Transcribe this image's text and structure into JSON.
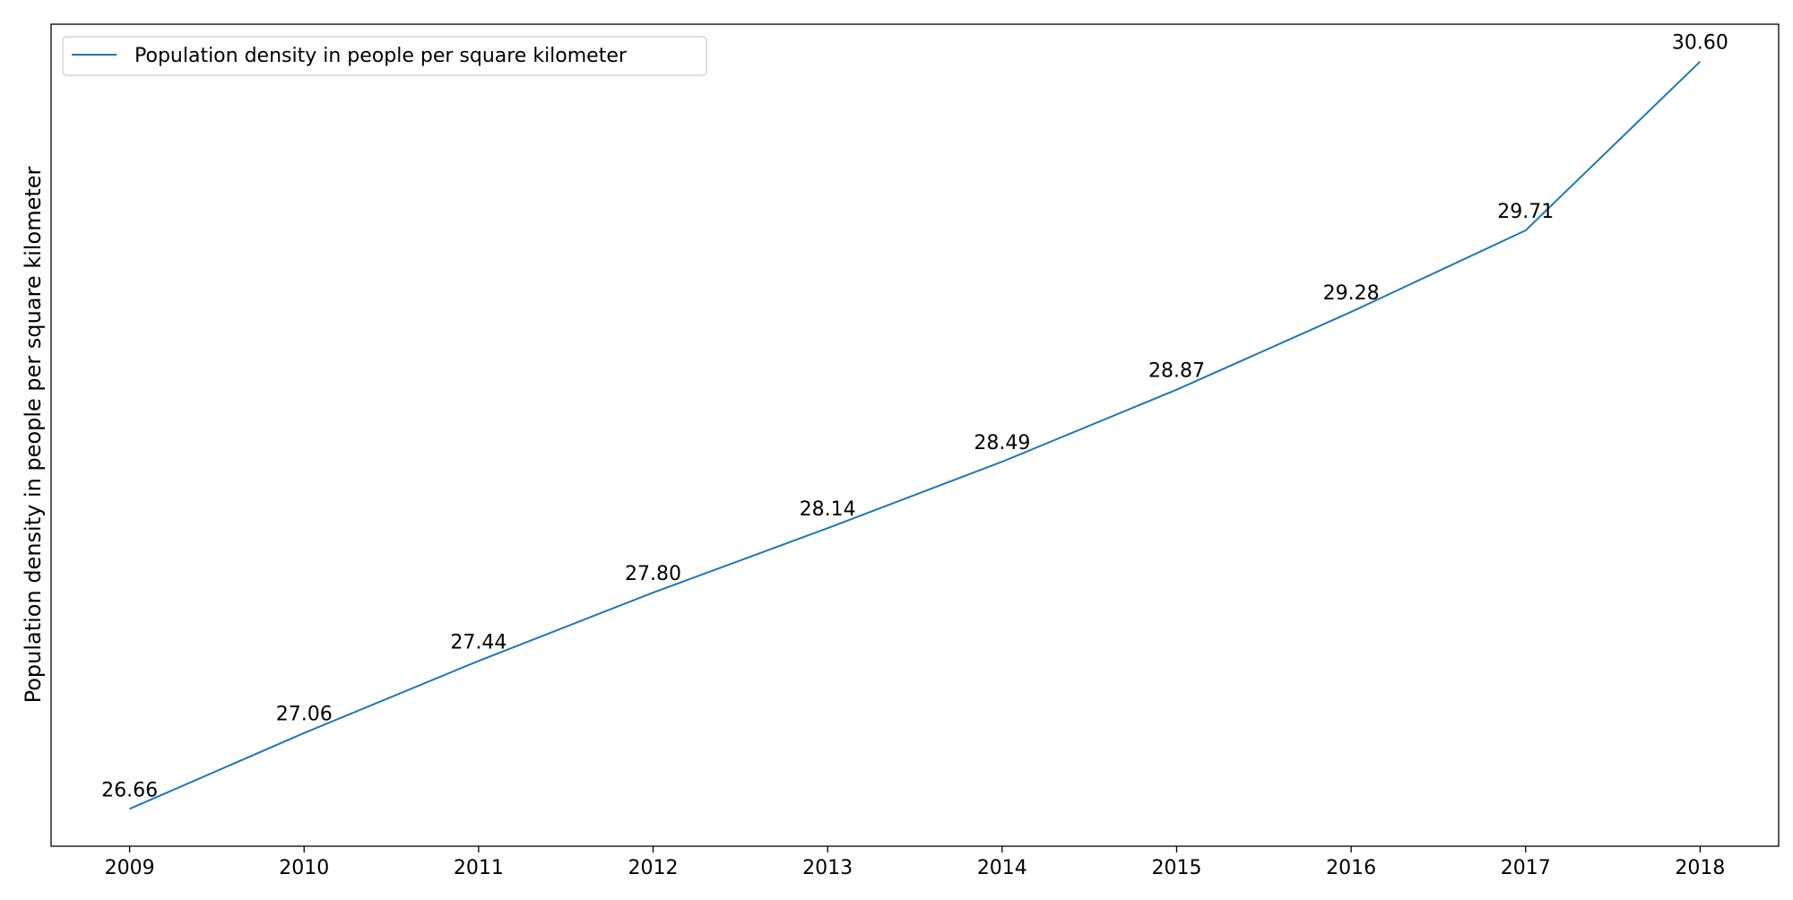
{
  "chart_data": {
    "type": "line",
    "title": "",
    "xlabel": "",
    "ylabel": "Population density in people per square kilometer",
    "x": [
      2009,
      2010,
      2011,
      2012,
      2013,
      2014,
      2015,
      2016,
      2017,
      2018
    ],
    "x_tick_labels": [
      "2009",
      "2010",
      "2011",
      "2012",
      "2013",
      "2014",
      "2015",
      "2016",
      "2017",
      "2018"
    ],
    "series": [
      {
        "name": "Population density in people per square kilometer",
        "values": [
          26.66,
          27.06,
          27.44,
          27.8,
          28.14,
          28.49,
          28.87,
          29.28,
          29.71,
          30.6
        ],
        "labels": [
          "26.66",
          "27.06",
          "27.44",
          "27.80",
          "28.14",
          "28.49",
          "28.87",
          "29.28",
          "29.71",
          "30.60"
        ],
        "color": "#1f77b4"
      }
    ],
    "xlim": [
      2008.55,
      2018.45
    ],
    "ylim": [
      26.463,
      30.797
    ],
    "y_ticks_shown": false,
    "grid": false,
    "legend": "top-left"
  }
}
